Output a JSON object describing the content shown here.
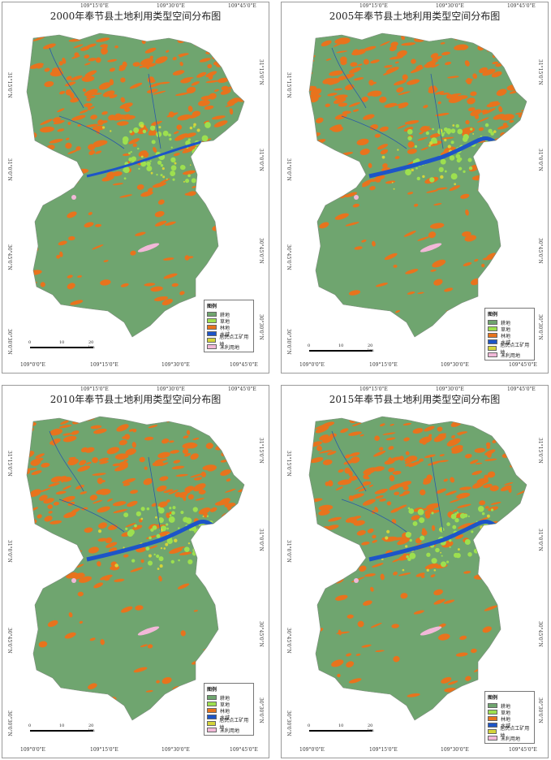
{
  "legend": {
    "title": "图例",
    "items": [
      {
        "label": "耕地",
        "color": "#6fa56f"
      },
      {
        "label": "草地",
        "color": "#9de04f"
      },
      {
        "label": "林地",
        "color": "#e8731d"
      },
      {
        "label": "水域",
        "color": "#1d55c8"
      },
      {
        "label": "居民点工矿用地",
        "color": "#d4d43a"
      },
      {
        "label": "未利用地",
        "color": "#f2b8d8"
      }
    ]
  },
  "panels": [
    {
      "title": "2000年奉节县土地利用类型空间分布图",
      "top_ticks": [
        "109°15'0\"E",
        "109°30'0\"E",
        "109°45'0\"E"
      ],
      "bottom_ticks": [
        "109°0'0\"E",
        "109°15'0\"E",
        "109°30'0\"E",
        "109°45'0\"E"
      ],
      "left_ticks": [
        "31°15'0\"N",
        "31°0'0\"N",
        "30°45'0\"N",
        "30°30'0\"N"
      ],
      "right_ticks": [
        "31°15'0\"N",
        "31°0'0\"N",
        "30°45'0\"N",
        "30°30'0\"N"
      ],
      "scale_labels": [
        "0",
        "10",
        "20 km"
      ]
    },
    {
      "title": "2005年奉节县土地利用类型空间分布图",
      "top_ticks": [
        "109°15'0\"E",
        "109°30'0\"E",
        "109°45'0\"E"
      ],
      "bottom_ticks": [
        "109°0'0\"E",
        "109°15'0\"E",
        "109°30'0\"E",
        "109°45'0\"E"
      ],
      "left_ticks": [
        "31°15'0\"N",
        "31°0'0\"N",
        "30°45'0\"N",
        "30°30'0\"N"
      ],
      "right_ticks": [
        "31°15'0\"N",
        "31°0'0\"N",
        "30°45'0\"N",
        "30°30'0\"N"
      ],
      "scale_labels": [
        "0",
        "10",
        "20 km"
      ]
    },
    {
      "title": "2010年奉节县土地利用类型空间分布图",
      "top_ticks": [
        "109°15'0\"E",
        "109°30'0\"E",
        "109°45'0\"E"
      ],
      "bottom_ticks": [
        "109°0'0\"E",
        "109°15'0\"E",
        "109°30'0\"E",
        "109°45'0\"E"
      ],
      "left_ticks": [
        "31°15'0\"N",
        "31°0'0\"N",
        "30°45'0\"N",
        "30°30'0\"N"
      ],
      "right_ticks": [
        "31°15'0\"N",
        "31°0'0\"N",
        "30°45'0\"N",
        "30°30'0\"N"
      ],
      "scale_labels": [
        "0",
        "10",
        "20 km"
      ]
    },
    {
      "title": "2015年奉节县土地利用类型空间分布图",
      "top_ticks": [
        "109°15'0\"E",
        "109°30'0\"E",
        "109°45'0\"E"
      ],
      "bottom_ticks": [
        "109°0'0\"E",
        "109°15'0\"E",
        "109°30'0\"E",
        "109°45'0\"E"
      ],
      "left_ticks": [
        "31°15'0\"N",
        "31°0'0\"N",
        "30°45'0\"N",
        "30°30'0\"N"
      ],
      "right_ticks": [
        "31°15'0\"N",
        "31°0'0\"N",
        "30°45'0\"N",
        "30°30'0\"N"
      ],
      "scale_labels": [
        "0",
        "10",
        "20 km"
      ]
    }
  ]
}
